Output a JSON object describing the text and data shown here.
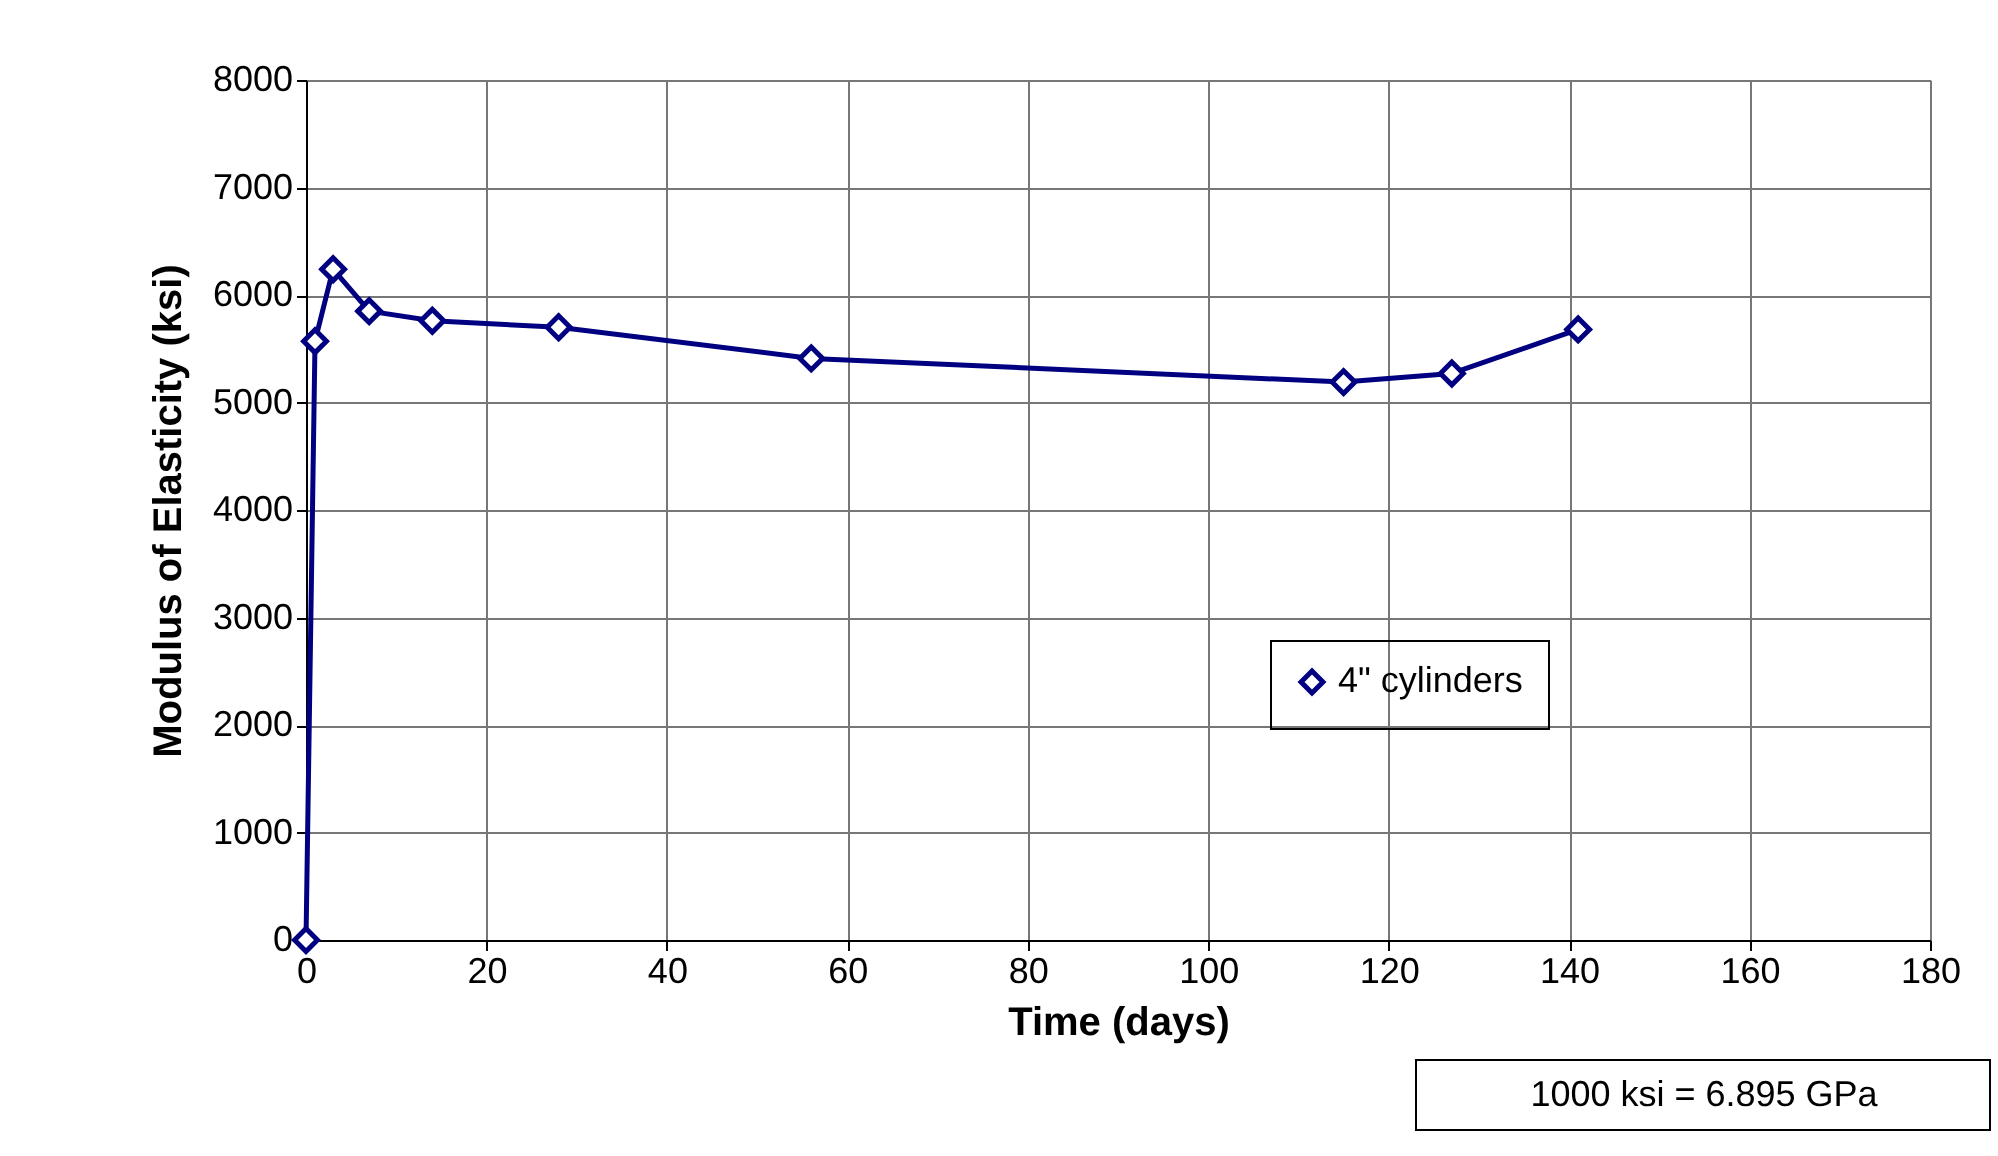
{
  "chart_data": {
    "type": "line",
    "xlabel": "Time  (days)",
    "ylabel": "Modulus of Elasticity  (ksi)",
    "x": [
      0,
      1,
      3,
      7,
      14,
      28,
      56,
      115,
      127,
      141
    ],
    "series": [
      {
        "name": "4\" cylinders",
        "color": "#000080",
        "values": [
          0,
          5570,
          6240,
          5850,
          5760,
          5700,
          5410,
          5190,
          5270,
          5680
        ]
      }
    ],
    "xlim": [
      0,
      180
    ],
    "xticks": [
      0,
      20,
      40,
      60,
      80,
      100,
      120,
      140,
      160,
      180
    ],
    "ylim": [
      0,
      8000
    ],
    "yticks": [
      0,
      1000,
      2000,
      3000,
      4000,
      5000,
      6000,
      7000,
      8000
    ],
    "grid": true,
    "legend": "right",
    "marker": "diamond",
    "line_style": "solid",
    "annotations": [
      "1000 ksi = 6.895 GPa"
    ]
  }
}
